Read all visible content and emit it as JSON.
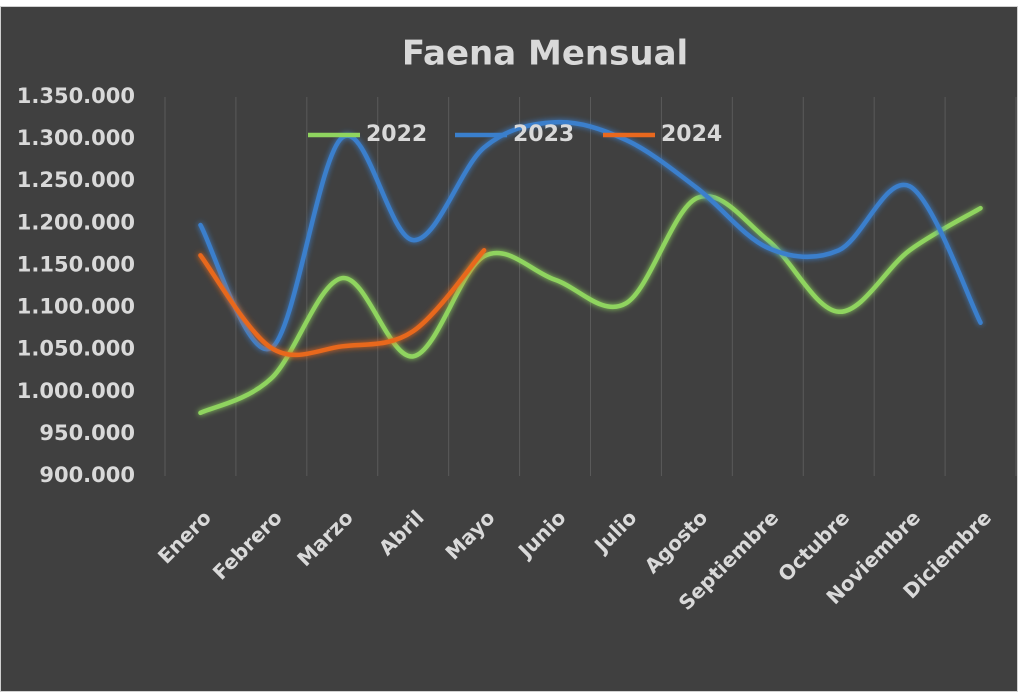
{
  "chart_data": {
    "type": "line",
    "title": "Faena Mensual",
    "categories": [
      "Enero",
      "Febrero",
      "Marzo",
      "Abril",
      "Mayo",
      "Junio",
      "Julio",
      "Agosto",
      "Septiembre",
      "Octubre",
      "Noviembre",
      "Diciembre"
    ],
    "series": [
      {
        "name": "2022",
        "color": "#8fd45f",
        "values": [
          975000,
          1016000,
          1135000,
          1042000,
          1161000,
          1133000,
          1105000,
          1230000,
          1180000,
          1095000,
          1168000,
          1218000
        ]
      },
      {
        "name": "2023",
        "color": "#3a7fcc",
        "values": [
          1198000,
          1052000,
          1302000,
          1180000,
          1290000,
          1320000,
          1299000,
          1242000,
          1171000,
          1168000,
          1244000,
          1082000
        ]
      },
      {
        "name": "2024",
        "color": "#e8681e",
        "values": [
          1162000,
          1052000,
          1054000,
          1072000,
          1168000,
          null,
          null,
          null,
          null,
          null,
          null,
          null
        ]
      }
    ],
    "ylim": [
      900000,
      1350000
    ],
    "yticks": [
      {
        "value": 900000,
        "label": "900.000"
      },
      {
        "value": 950000,
        "label": "950.000"
      },
      {
        "value": 1000000,
        "label": "1.000.000"
      },
      {
        "value": 1050000,
        "label": "1.050.000"
      },
      {
        "value": 1100000,
        "label": "1.100.000"
      },
      {
        "value": 1150000,
        "label": "1.150.000"
      },
      {
        "value": 1200000,
        "label": "1.200.000"
      },
      {
        "value": 1250000,
        "label": "1.250.000"
      },
      {
        "value": 1300000,
        "label": "1.300.000"
      },
      {
        "value": 1350000,
        "label": "1.350.000"
      }
    ],
    "grid": "x",
    "legend": "top",
    "smooth": true
  }
}
